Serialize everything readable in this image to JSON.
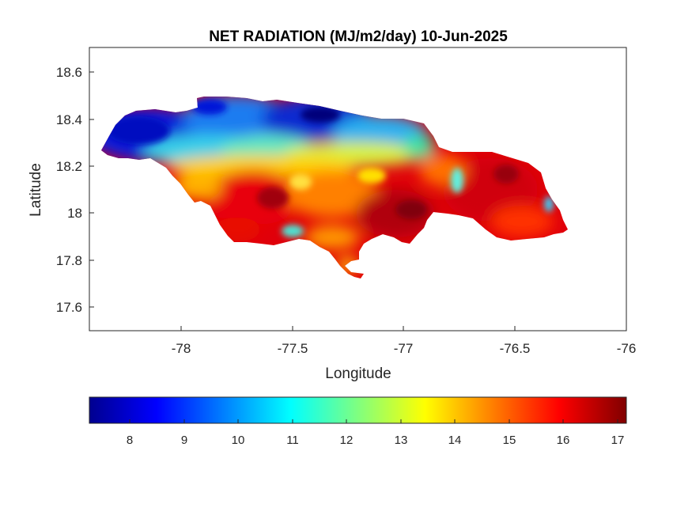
{
  "title": "NET RADIATION (MJ/m2/day) 10-Jun-2025",
  "xlabel": "Longitude",
  "ylabel": "Latitude",
  "x_ticks": [
    "-78",
    "-77.5",
    "-77",
    "-76.5",
    "-76"
  ],
  "y_ticks": [
    "18.6",
    "18.4",
    "18.2",
    "18",
    "17.8",
    "17.6"
  ],
  "colorbar_ticks": [
    "8",
    "9",
    "10",
    "11",
    "12",
    "13",
    "14",
    "15",
    "16",
    "17"
  ],
  "map": {
    "xlim": [
      -78.42,
      -76.0
    ],
    "ylim": [
      17.5,
      18.7
    ],
    "colorbar_range": [
      7.3,
      17.2
    ],
    "colormap": "jet",
    "color_stops": [
      "#00008f",
      "#0000ff",
      "#00ffff",
      "#ffff00",
      "#ff0000",
      "#800000"
    ],
    "outline_color": "#262626",
    "grid": false
  }
}
